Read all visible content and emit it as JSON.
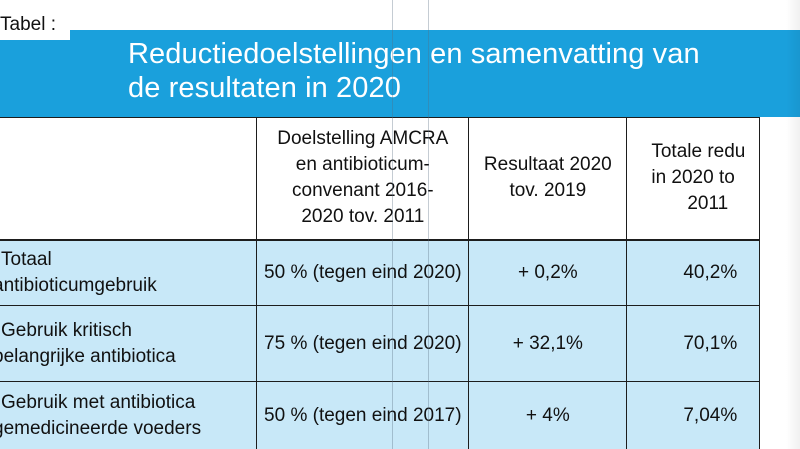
{
  "label": "Tabel :",
  "title": {
    "line1": "Reductiedoelstellingen en samenvatting van",
    "line2": "de resultaten in 2020"
  },
  "columns": [
    {
      "lines": [
        ""
      ]
    },
    {
      "lines": [
        "Doelstelling AMCRA",
        "en antibioticum-",
        "convenant 2016-",
        "2020 tov. 2011"
      ]
    },
    {
      "lines": [
        "Resultaat 2020",
        "tov. 2019"
      ]
    },
    {
      "lines": [
        "Totale redu",
        "in 2020 to",
        "2011"
      ]
    }
  ],
  "rows": [
    {
      "label_lines": [
        "Totaal",
        "antibioticumgebruik"
      ],
      "target": "50 % (tegen eind 2020)",
      "result": "+ 0,2%",
      "total": "40,2%"
    },
    {
      "label_lines": [
        "Gebruik kritisch",
        "belangrijke antibiotica"
      ],
      "target": "75 % (tegen eind 2020)",
      "result": "+ 32,1%",
      "total": "70,1%"
    },
    {
      "label_lines": [
        "Gebruik met antibiotica",
        "gemedicineerde voeders"
      ],
      "target": "50 % (tegen eind 2017)",
      "result": "+ 4%",
      "total": "7,04%"
    }
  ],
  "colors": {
    "title_band": "#1aa0dc",
    "row_fill": "#c8e8f8",
    "rule": "#1d1d1d"
  }
}
